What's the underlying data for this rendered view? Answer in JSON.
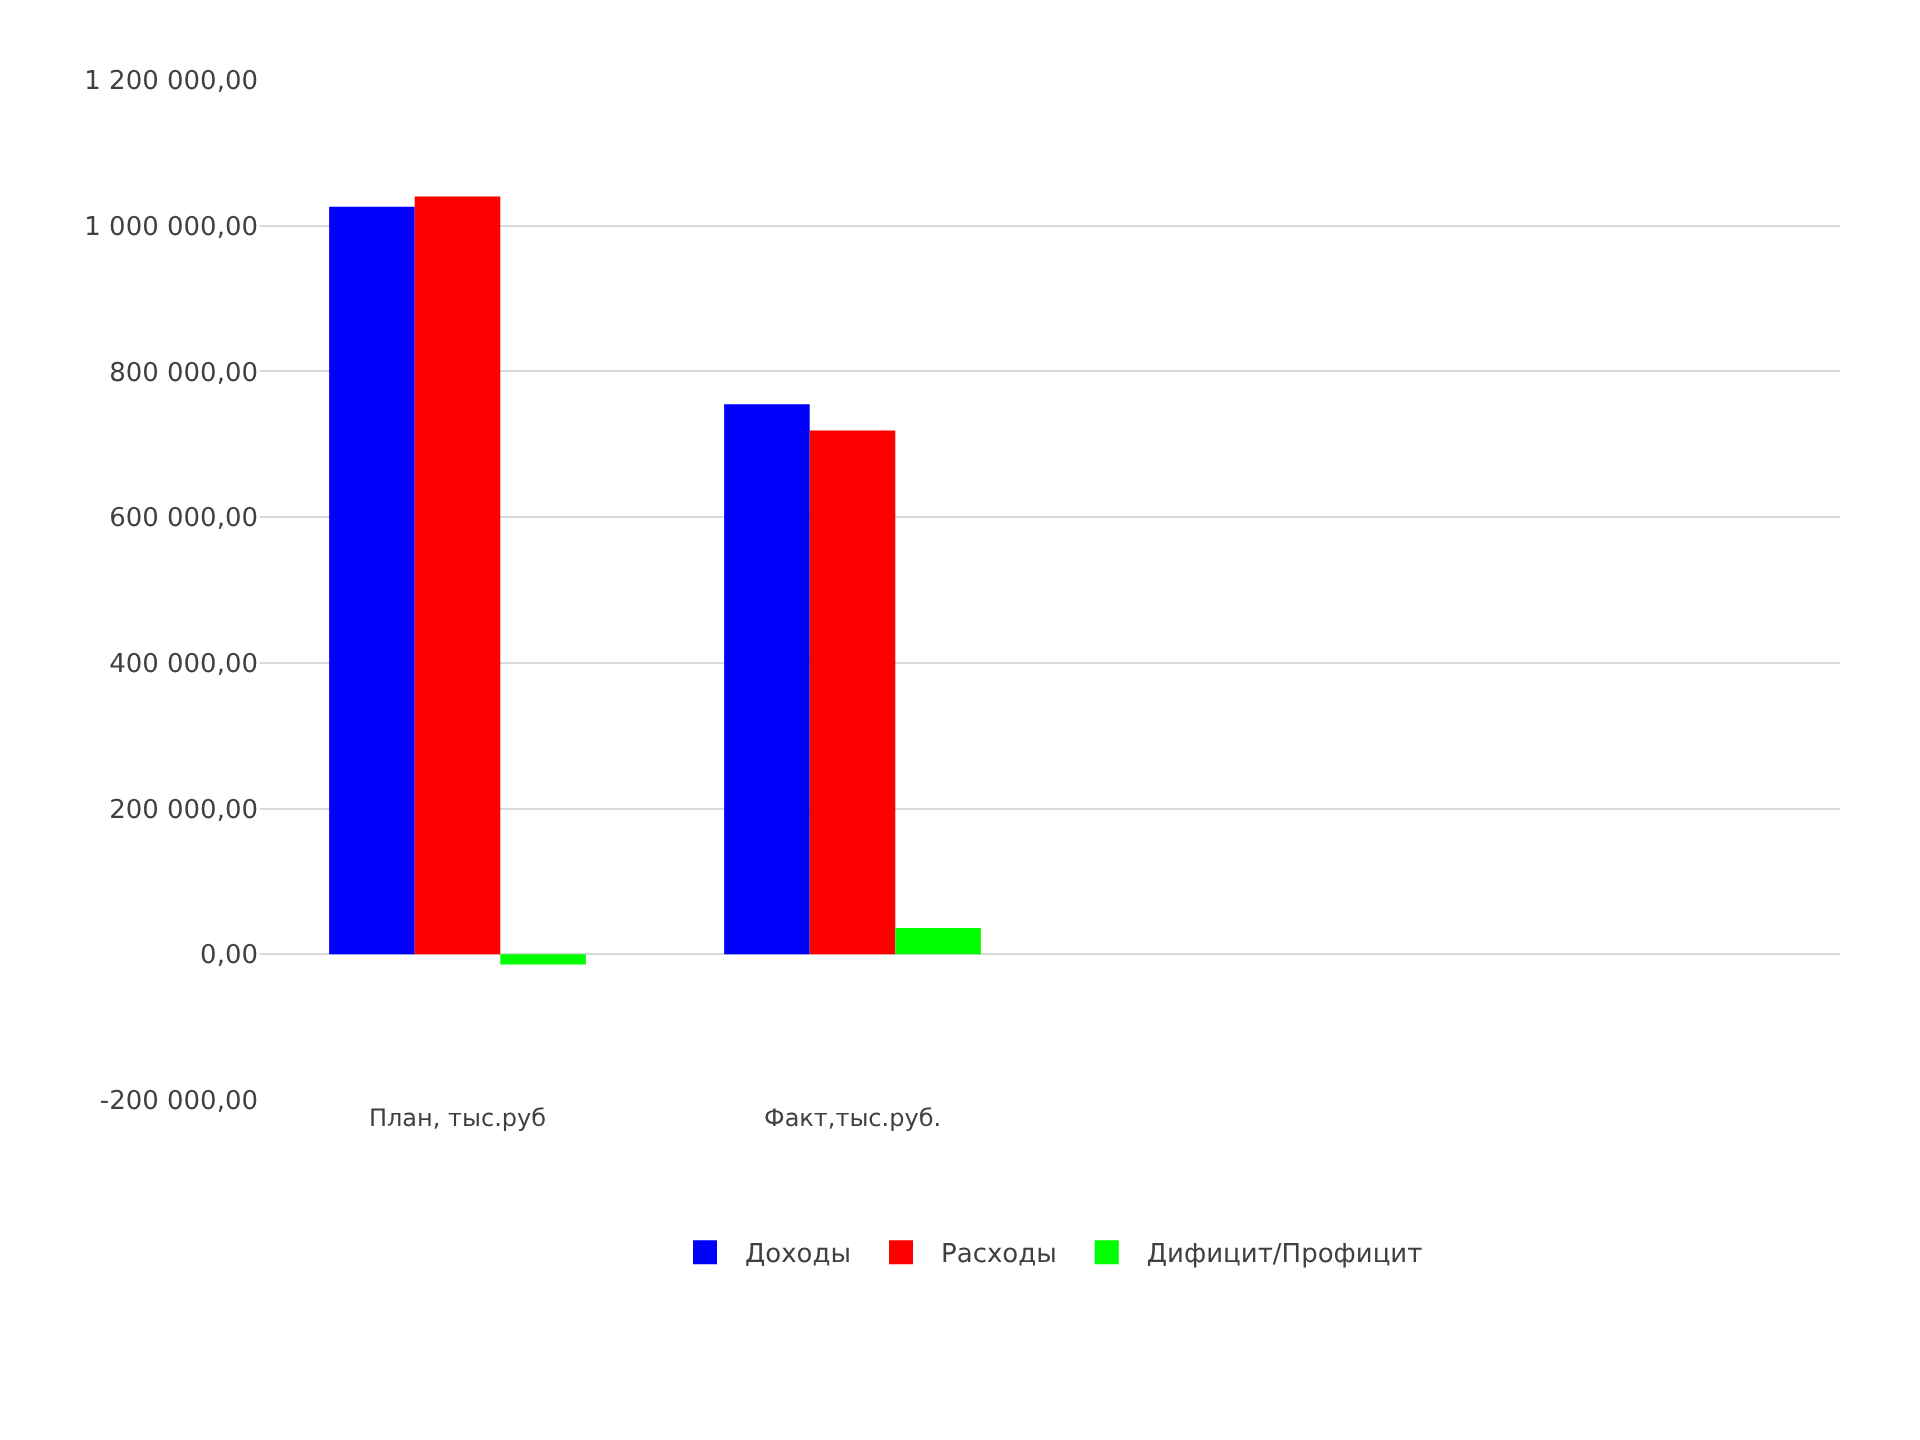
{
  "chart_data": {
    "type": "bar",
    "categories": [
      "План, тыс.руб",
      "Факт,тыс.руб."
    ],
    "series": [
      {
        "name": "Доходы",
        "color": "#0000ff",
        "values": [
          1026000,
          755000
        ]
      },
      {
        "name": "Расходы",
        "color": "#ff0000",
        "values": [
          1040000,
          719000
        ]
      },
      {
        "name": "Дифицит/Профицит",
        "color": "#00ff00",
        "values": [
          -14000,
          36000
        ]
      }
    ],
    "ylim": [
      -200000,
      1200000
    ],
    "yticks": [
      {
        "value": -200000,
        "label": "-200 000,00"
      },
      {
        "value": 0,
        "label": "0,00"
      },
      {
        "value": 200000,
        "label": "200 000,00"
      },
      {
        "value": 400000,
        "label": "400 000,00"
      },
      {
        "value": 600000,
        "label": "600 000,00"
      },
      {
        "value": 800000,
        "label": "800 000,00"
      },
      {
        "value": 1000000,
        "label": "1 000 000,00"
      },
      {
        "value": 1200000,
        "label": "1 200 000,00"
      }
    ],
    "grid": "y",
    "legend": "bottom"
  }
}
